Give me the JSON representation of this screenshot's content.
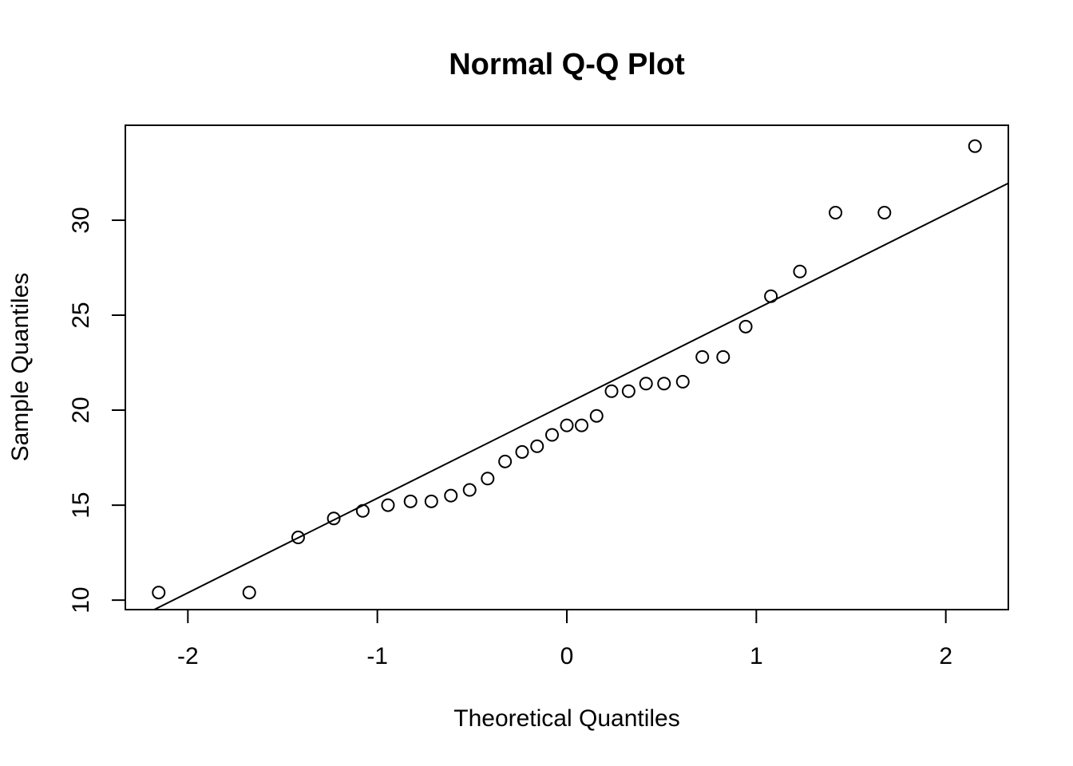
{
  "chart_data": {
    "type": "scatter",
    "title": "Normal Q-Q Plot",
    "xlabel": "Theoretical Quantiles",
    "ylabel": "Sample Quantiles",
    "xlim": [
      -2.33,
      2.33
    ],
    "ylim": [
      9.5,
      35.0
    ],
    "x_ticks": [
      -2,
      -1,
      0,
      1,
      2
    ],
    "x_tick_labels": [
      "-2",
      "-1",
      "0",
      "1",
      "2"
    ],
    "y_ticks": [
      10,
      15,
      20,
      25,
      30
    ],
    "y_tick_labels": [
      "10",
      "15",
      "20",
      "25",
      "30"
    ],
    "grid": false,
    "legend": "none",
    "point_style": "open-circle",
    "series": [
      {
        "x": [
          -2.154,
          -1.676,
          -1.418,
          -1.23,
          -1.077,
          -0.944,
          -0.825,
          -0.715,
          -0.612,
          -0.513,
          -0.418,
          -0.326,
          -0.236,
          -0.157,
          -0.078,
          0.0,
          0.078,
          0.157,
          0.236,
          0.326,
          0.418,
          0.513,
          0.612,
          0.715,
          0.825,
          0.944,
          1.077,
          1.23,
          1.418,
          1.676,
          2.154
        ],
        "y": [
          10.4,
          10.4,
          13.3,
          14.3,
          14.7,
          15.0,
          15.2,
          15.2,
          15.5,
          15.8,
          16.4,
          17.3,
          17.8,
          18.1,
          18.7,
          19.2,
          19.2,
          19.7,
          21.0,
          21.0,
          21.4,
          21.4,
          21.5,
          22.8,
          22.8,
          24.4,
          26.0,
          27.3,
          30.4,
          30.4,
          33.9
        ]
      }
    ],
    "reference_line": {
      "x": [
        -2.33,
        2.33
      ],
      "y": [
        8.74,
        31.95
      ]
    }
  }
}
